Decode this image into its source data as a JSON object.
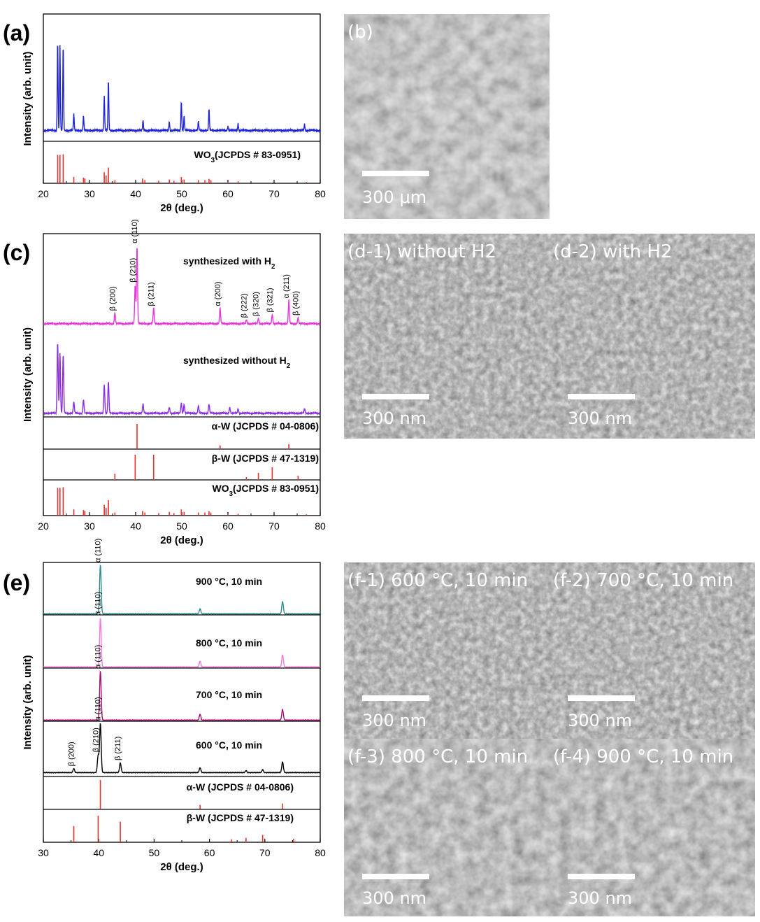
{
  "chart_data": [
    {
      "panel": "(a)",
      "type": "line",
      "xlabel": "2θ (deg.)",
      "ylabel": "Intensity (arb. unit)",
      "xlim": [
        20,
        80
      ],
      "xticks": [
        20,
        30,
        40,
        50,
        60,
        70,
        80
      ],
      "series": [
        {
          "color": "#1e22d6",
          "peaks": [
            [
              23.1,
              1.0
            ],
            [
              23.6,
              0.93
            ],
            [
              24.3,
              0.95
            ],
            [
              26.6,
              0.18
            ],
            [
              28.7,
              0.16
            ],
            [
              33.2,
              0.38
            ],
            [
              34.1,
              0.56
            ],
            [
              41.6,
              0.11
            ],
            [
              47.3,
              0.1
            ],
            [
              49.9,
              0.33
            ],
            [
              50.5,
              0.16
            ],
            [
              53.6,
              0.1
            ],
            [
              55.9,
              0.24
            ],
            [
              60.0,
              0.05
            ],
            [
              62.2,
              0.08
            ],
            [
              76.6,
              0.07
            ]
          ]
        }
      ],
      "reference": {
        "label": "WO3(JCPDS # 83-0951)",
        "color": "#e8302c",
        "lines": [
          [
            23.1,
            0.9
          ],
          [
            23.6,
            0.9
          ],
          [
            24.3,
            0.92
          ],
          [
            26.6,
            0.2
          ],
          [
            28.7,
            0.18
          ],
          [
            29.0,
            0.15
          ],
          [
            33.2,
            0.35
          ],
          [
            33.6,
            0.25
          ],
          [
            34.1,
            0.5
          ],
          [
            35.5,
            0.1
          ],
          [
            41.5,
            0.15
          ],
          [
            42.0,
            0.1
          ],
          [
            45.0,
            0.08
          ],
          [
            47.3,
            0.12
          ],
          [
            48.3,
            0.08
          ],
          [
            49.9,
            0.2
          ],
          [
            50.5,
            0.12
          ],
          [
            53.6,
            0.1
          ],
          [
            55.0,
            0.1
          ],
          [
            55.9,
            0.14
          ],
          [
            56.3,
            0.1
          ],
          [
            60.0,
            0.05
          ],
          [
            62.2,
            0.06
          ],
          [
            77.0,
            0.04
          ]
        ]
      }
    },
    {
      "panel": "(c)",
      "type": "line",
      "xlabel": "2θ (deg.)",
      "ylabel": "Intensity (arb. unit)",
      "xlim": [
        20,
        80
      ],
      "xticks": [
        20,
        30,
        40,
        50,
        60,
        70,
        80
      ],
      "series": [
        {
          "name": "synthesized with H2",
          "color": "#e536d8",
          "peaks": [
            [
              35.5,
              0.14
            ],
            [
              39.9,
              0.5
            ],
            [
              40.3,
              1.0
            ],
            [
              43.9,
              0.2
            ],
            [
              58.3,
              0.2
            ],
            [
              64.0,
              0.05
            ],
            [
              66.6,
              0.07
            ],
            [
              69.6,
              0.12
            ],
            [
              73.2,
              0.3
            ],
            [
              75.2,
              0.08
            ]
          ],
          "annotations": [
            {
              "text": "β (200)",
              "x": 35.5
            },
            {
              "text": "β (210)",
              "x": 39.9
            },
            {
              "text": "α (110)",
              "x": 40.3
            },
            {
              "text": "β (211)",
              "x": 43.9
            },
            {
              "text": "α (200)",
              "x": 58.3
            },
            {
              "text": "β (222)",
              "x": 64.0
            },
            {
              "text": "β (320)",
              "x": 66.6
            },
            {
              "text": "β (321)",
              "x": 69.6
            },
            {
              "text": "α (211)",
              "x": 73.2
            },
            {
              "text": "β (400)",
              "x": 75.2
            }
          ]
        },
        {
          "name": "synthesized without H2",
          "color": "#8a2ce0",
          "peaks": [
            [
              23.1,
              0.95
            ],
            [
              23.6,
              0.8
            ],
            [
              24.3,
              0.78
            ],
            [
              26.6,
              0.15
            ],
            [
              28.7,
              0.18
            ],
            [
              33.2,
              0.38
            ],
            [
              34.1,
              0.42
            ],
            [
              41.6,
              0.12
            ],
            [
              47.3,
              0.08
            ],
            [
              49.9,
              0.14
            ],
            [
              50.5,
              0.12
            ],
            [
              53.6,
              0.1
            ],
            [
              55.9,
              0.12
            ],
            [
              60.4,
              0.08
            ],
            [
              62.2,
              0.06
            ],
            [
              76.6,
              0.06
            ]
          ]
        }
      ],
      "references": [
        {
          "label": "α-W (JCPDS # 04-0806)",
          "color": "#e8302c",
          "lines": [
            [
              40.3,
              1.0
            ],
            [
              58.3,
              0.15
            ],
            [
              73.2,
              0.2
            ]
          ]
        },
        {
          "label": "β-W (JCPDS # 47-1319)",
          "color": "#e8302c",
          "lines": [
            [
              35.5,
              0.22
            ],
            [
              39.9,
              0.9
            ],
            [
              43.9,
              0.9
            ],
            [
              64.0,
              0.1
            ],
            [
              66.6,
              0.25
            ],
            [
              69.6,
              0.45
            ],
            [
              75.2,
              0.15
            ]
          ]
        },
        {
          "label": "WO3(JCPDS # 83-0951)",
          "color": "#e8302c",
          "lines": [
            [
              23.1,
              0.9
            ],
            [
              23.6,
              0.9
            ],
            [
              24.3,
              0.92
            ],
            [
              26.6,
              0.2
            ],
            [
              28.7,
              0.18
            ],
            [
              29.0,
              0.15
            ],
            [
              33.2,
              0.35
            ],
            [
              33.6,
              0.25
            ],
            [
              34.1,
              0.5
            ],
            [
              35.5,
              0.1
            ],
            [
              41.5,
              0.15
            ],
            [
              42.0,
              0.1
            ],
            [
              45.0,
              0.08
            ],
            [
              47.3,
              0.12
            ],
            [
              48.3,
              0.08
            ],
            [
              49.9,
              0.2
            ],
            [
              50.5,
              0.12
            ],
            [
              53.6,
              0.1
            ],
            [
              55.0,
              0.1
            ],
            [
              55.9,
              0.14
            ],
            [
              56.3,
              0.1
            ],
            [
              60.0,
              0.05
            ],
            [
              62.2,
              0.06
            ],
            [
              77.0,
              0.04
            ]
          ]
        }
      ]
    },
    {
      "panel": "(e)",
      "type": "line",
      "xlabel": "2θ (deg.)",
      "ylabel": "Intensity (arb. unit)",
      "xlim": [
        30,
        80
      ],
      "xticks": [
        30,
        40,
        50,
        60,
        70,
        80
      ],
      "series": [
        {
          "name": "900 °C, 10 min",
          "color": "#2f8a8c",
          "peaks": [
            [
              40.3,
              1.0
            ],
            [
              58.3,
              0.1
            ],
            [
              73.2,
              0.25
            ]
          ],
          "annotations": [
            {
              "text": "α (110)",
              "x": 40.3
            }
          ]
        },
        {
          "name": "800 °C, 10 min",
          "color": "#f07ad8",
          "peaks": [
            [
              40.3,
              1.0
            ],
            [
              58.3,
              0.12
            ],
            [
              73.2,
              0.25
            ]
          ],
          "annotations": [
            {
              "text": "α (110)",
              "x": 40.3
            }
          ]
        },
        {
          "name": "700 °C, 10 min",
          "color": "#a0106e",
          "peaks": [
            [
              40.3,
              1.0
            ],
            [
              58.3,
              0.12
            ],
            [
              73.2,
              0.22
            ]
          ],
          "annotations": [
            {
              "text": "α (110)",
              "x": 40.3
            }
          ]
        },
        {
          "name": "600 °C, 10 min",
          "color": "#000000",
          "peaks": [
            [
              35.5,
              0.08
            ],
            [
              39.9,
              0.35
            ],
            [
              40.3,
              1.0
            ],
            [
              43.9,
              0.2
            ],
            [
              58.3,
              0.1
            ],
            [
              66.6,
              0.04
            ],
            [
              69.6,
              0.06
            ],
            [
              73.2,
              0.22
            ]
          ],
          "annotations": [
            {
              "text": "β (200)",
              "x": 35.5
            },
            {
              "text": "β (210)",
              "x": 39.9
            },
            {
              "text": "α (110)",
              "x": 40.3
            },
            {
              "text": "β (211)",
              "x": 43.9
            }
          ]
        }
      ],
      "references": [
        {
          "label": "α-W (JCPDS # 04-0806)",
          "color": "#e8302c",
          "lines": [
            [
              40.3,
              1.0
            ],
            [
              58.3,
              0.15
            ],
            [
              73.2,
              0.2
            ]
          ]
        },
        {
          "label": "β-W (JCPDS # 47-1319)",
          "color": "#e8302c",
          "lines": [
            [
              35.5,
              0.55
            ],
            [
              39.9,
              0.9
            ],
            [
              43.9,
              0.7
            ],
            [
              64.0,
              0.1
            ],
            [
              66.6,
              0.15
            ],
            [
              69.6,
              0.25
            ],
            [
              75.2,
              0.12
            ]
          ]
        }
      ]
    }
  ],
  "images": {
    "b": {
      "label": "(b)",
      "scale": "300 μm"
    },
    "d1": {
      "label": "(d-1) without H2",
      "scale": "300 nm"
    },
    "d2": {
      "label": "(d-2) with H2",
      "scale": "300 nm"
    },
    "f1": {
      "label": "(f-1) 600 °C, 10 min",
      "scale": "300 nm"
    },
    "f2": {
      "label": "(f-2) 700 °C, 10 min",
      "scale": "300 nm"
    },
    "f3": {
      "label": "(f-3) 800 °C, 10 min",
      "scale": "300 nm"
    },
    "f4": {
      "label": "(f-4) 900 °C, 10 min",
      "scale": "300 nm"
    }
  },
  "panel_letters": {
    "a": "(a)",
    "c": "(c)",
    "e": "(e)"
  },
  "colors": {
    "ref": "#e8302c",
    "sem_dark": "#3a3a3a",
    "sem_light": "#bdbdbd"
  }
}
